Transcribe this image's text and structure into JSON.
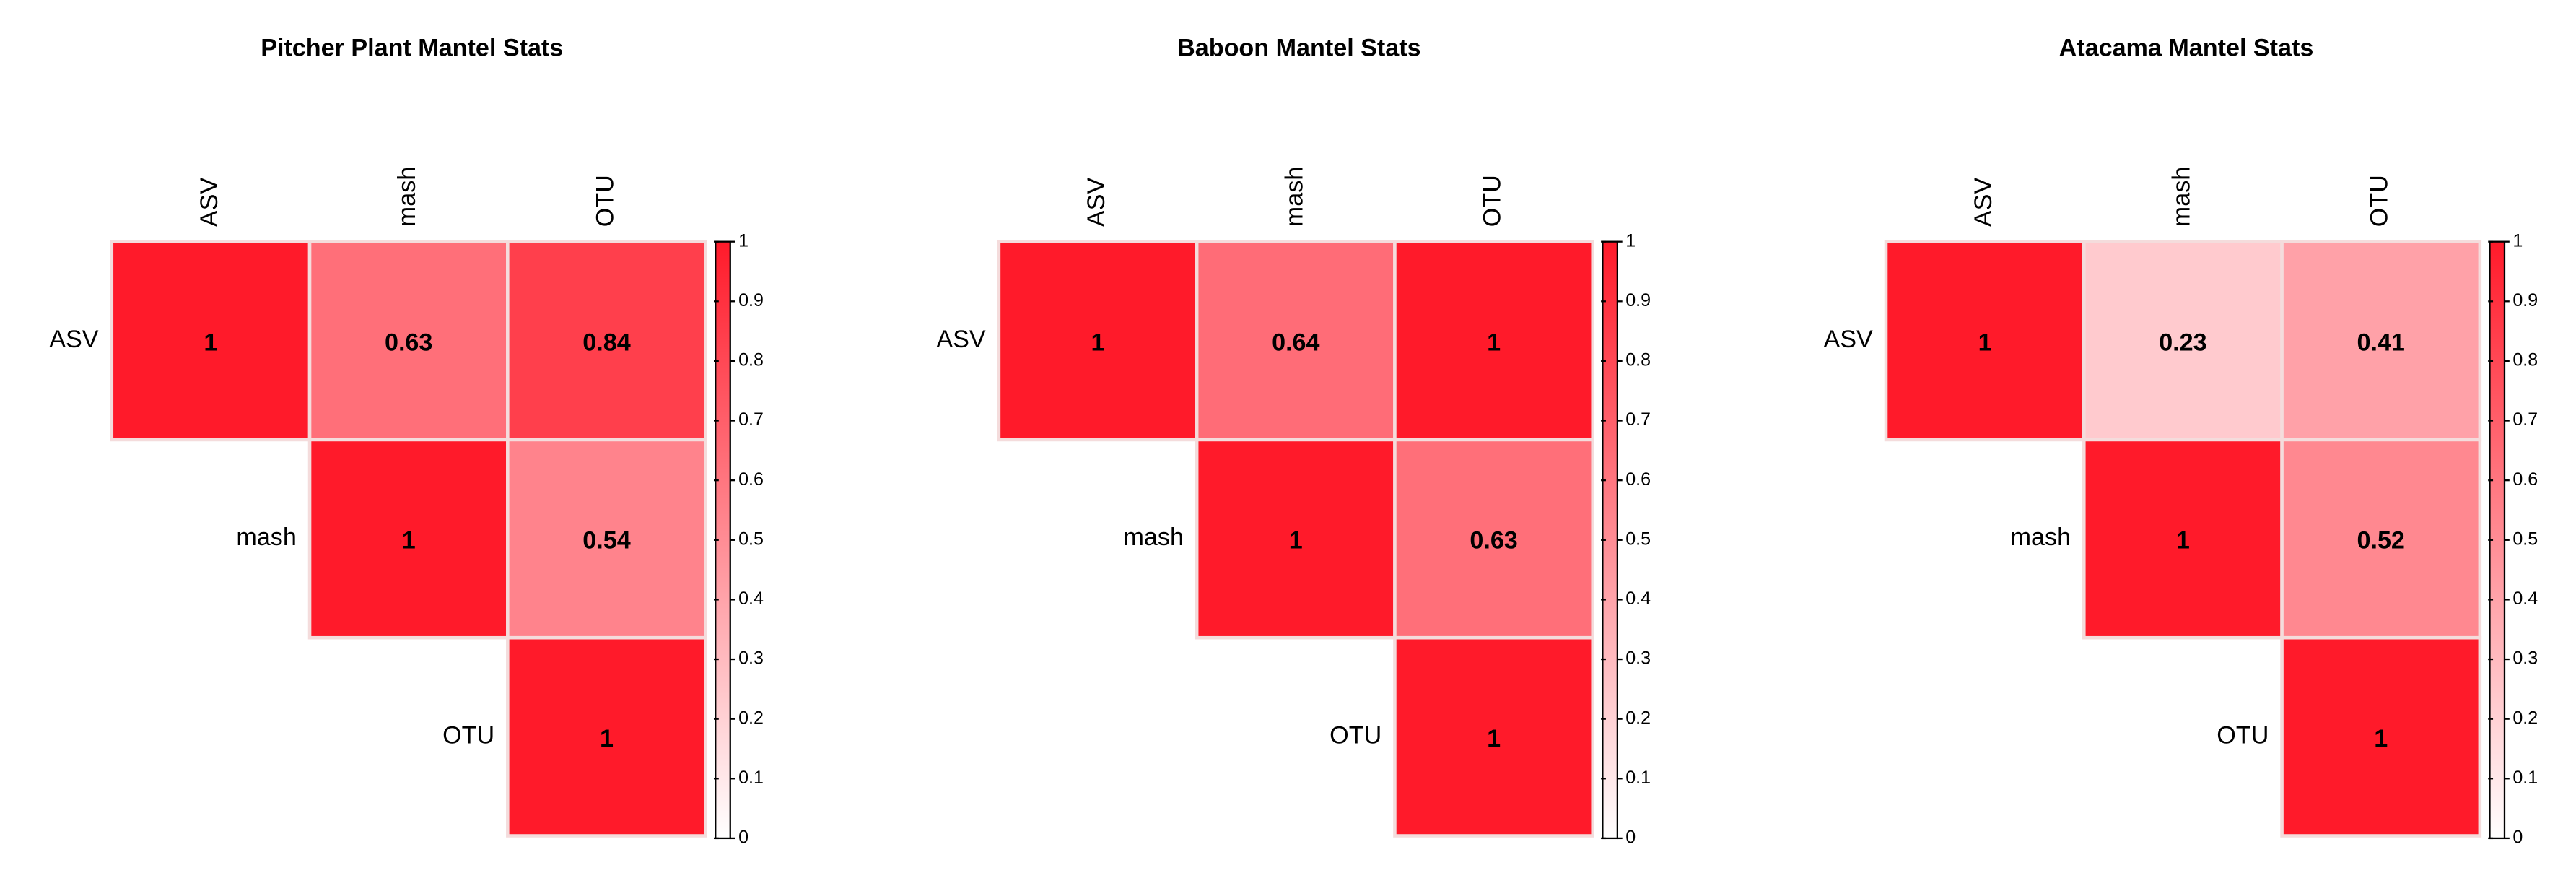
{
  "chart_data": [
    {
      "type": "heatmap",
      "title": "Pitcher Plant Mantel Stats",
      "rows": [
        "ASV",
        "mash",
        "OTU"
      ],
      "columns": [
        "ASV",
        "mash",
        "OTU"
      ],
      "values": [
        [
          1,
          0.63,
          0.84
        ],
        [
          null,
          1,
          0.54
        ],
        [
          null,
          null,
          1
        ]
      ],
      "clim": [
        0,
        1
      ],
      "cticks": [
        0,
        0.1,
        0.2,
        0.3,
        0.4,
        0.5,
        0.6,
        0.7,
        0.8,
        0.9,
        1
      ],
      "low_color": "#ffffff",
      "high_color": "#ff1a2a"
    },
    {
      "type": "heatmap",
      "title": "Baboon Mantel Stats",
      "rows": [
        "ASV",
        "mash",
        "OTU"
      ],
      "columns": [
        "ASV",
        "mash",
        "OTU"
      ],
      "values": [
        [
          1,
          0.64,
          1
        ],
        [
          null,
          1,
          0.63
        ],
        [
          null,
          null,
          1
        ]
      ],
      "clim": [
        0,
        1
      ],
      "cticks": [
        0,
        0.1,
        0.2,
        0.3,
        0.4,
        0.5,
        0.6,
        0.7,
        0.8,
        0.9,
        1
      ],
      "low_color": "#ffffff",
      "high_color": "#ff1a2a"
    },
    {
      "type": "heatmap",
      "title": "Atacama Mantel Stats",
      "rows": [
        "ASV",
        "mash",
        "OTU"
      ],
      "columns": [
        "ASV",
        "mash",
        "OTU"
      ],
      "values": [
        [
          1,
          0.23,
          0.41
        ],
        [
          null,
          1,
          0.52
        ],
        [
          null,
          null,
          1
        ]
      ],
      "clim": [
        0,
        1
      ],
      "cticks": [
        0,
        0.1,
        0.2,
        0.3,
        0.4,
        0.5,
        0.6,
        0.7,
        0.8,
        0.9,
        1
      ],
      "low_color": "#ffffff",
      "high_color": "#ff1a2a"
    }
  ]
}
